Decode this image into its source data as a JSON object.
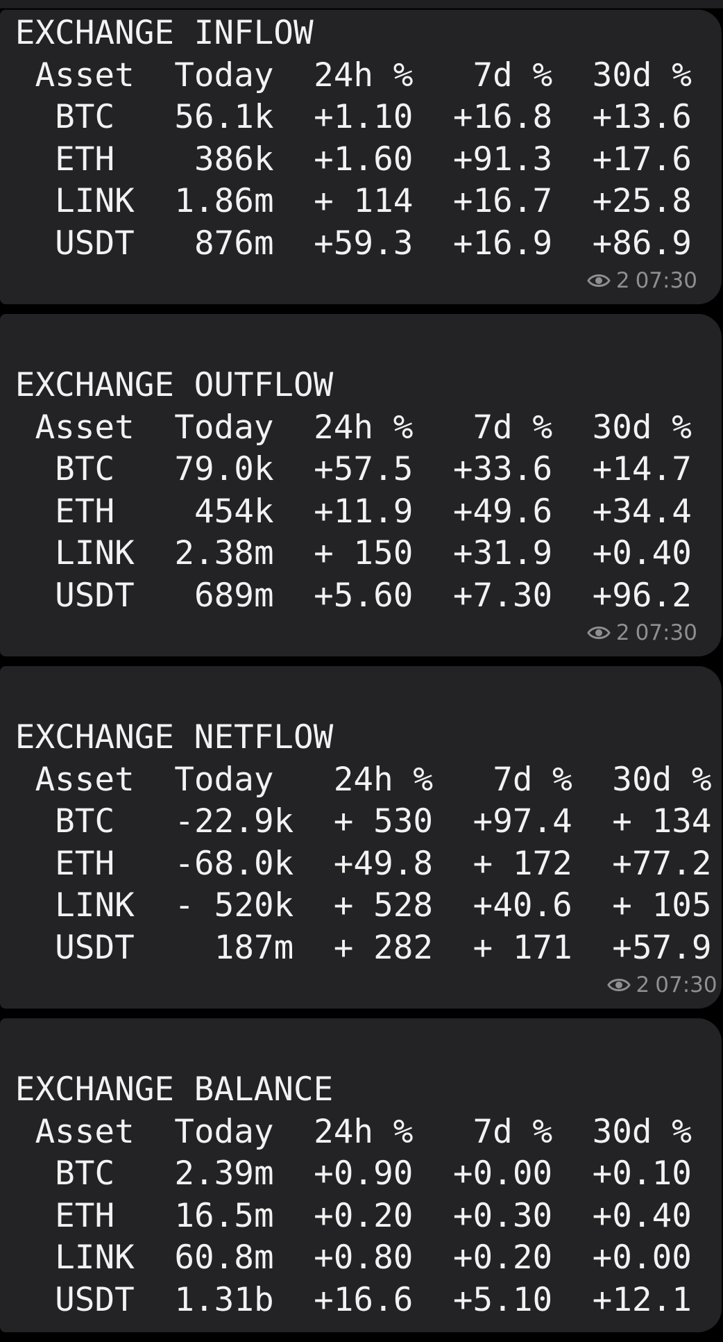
{
  "messages": [
    {
      "title": "EXCHANGE INFLOW",
      "header": [
        "Asset",
        "Today",
        "24h %",
        "7d %",
        "30d %"
      ],
      "rows": [
        [
          "BTC",
          "56.1k",
          "+1.10",
          "+16.8",
          "+13.6"
        ],
        [
          "ETH",
          "386k",
          "+1.60",
          "+91.3",
          "+17.6"
        ],
        [
          "LINK",
          "1.86m",
          "+ 114",
          "+16.7",
          "+25.8"
        ],
        [
          "USDT",
          "876m",
          "+59.3",
          "+16.9",
          "+86.9"
        ]
      ],
      "views": "2",
      "time": "07:30"
    },
    {
      "title": "EXCHANGE OUTFLOW",
      "header": [
        "Asset",
        "Today",
        "24h %",
        "7d %",
        "30d %"
      ],
      "rows": [
        [
          "BTC",
          "79.0k",
          "+57.5",
          "+33.6",
          "+14.7"
        ],
        [
          "ETH",
          "454k",
          "+11.9",
          "+49.6",
          "+34.4"
        ],
        [
          "LINK",
          "2.38m",
          "+ 150",
          "+31.9",
          "+0.40"
        ],
        [
          "USDT",
          "689m",
          "+5.60",
          "+7.30",
          "+96.2"
        ]
      ],
      "views": "2",
      "time": "07:30"
    },
    {
      "title": "EXCHANGE NETFLOW",
      "header": [
        "Asset",
        "Today",
        "24h %",
        "7d %",
        "30d %"
      ],
      "rows": [
        [
          "BTC",
          "-22.9k",
          "+ 530",
          "+97.4",
          "+ 134"
        ],
        [
          "ETH",
          "-68.0k",
          "+49.8",
          "+ 172",
          "+77.2"
        ],
        [
          "LINK",
          "- 520k",
          "+ 528",
          "+40.6",
          "+ 105"
        ],
        [
          "USDT",
          "187m",
          "+ 282",
          "+ 171",
          "+57.9"
        ]
      ],
      "views": "2",
      "time": "07:30"
    },
    {
      "title": "EXCHANGE BALANCE",
      "header": [
        "Asset",
        "Today",
        "24h %",
        "7d %",
        "30d %"
      ],
      "rows": [
        [
          "BTC",
          "2.39m",
          "+0.90",
          "+0.00",
          "+0.10"
        ],
        [
          "ETH",
          "16.5m",
          "+0.20",
          "+0.30",
          "+0.40"
        ],
        [
          "LINK",
          "60.8m",
          "+0.80",
          "+0.20",
          "+0.00"
        ],
        [
          "USDT",
          "1.31b",
          "+16.6",
          "+5.10",
          "+12.1"
        ]
      ]
    }
  ]
}
